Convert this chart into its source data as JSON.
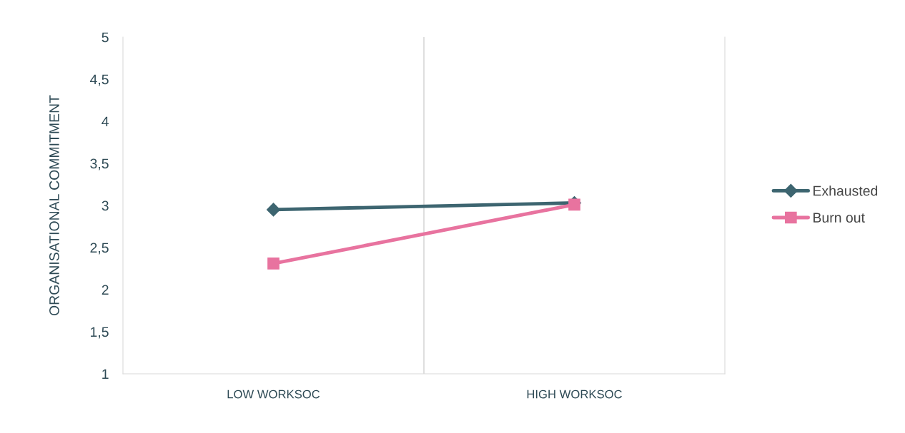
{
  "chart_data": {
    "type": "line",
    "ylabel": "ORGANISATIONAL COMMITMENT",
    "categories": [
      "LOW WORKSOC",
      "HIGH WORKSOC"
    ],
    "series": [
      {
        "name": "Exhausted",
        "color": "#3d6570",
        "marker": "diamond",
        "values": [
          2.95,
          3.03
        ]
      },
      {
        "name": "Burn out",
        "color": "#e8739f",
        "marker": "square",
        "values": [
          2.31,
          3.01
        ]
      }
    ],
    "ylim": [
      1,
      5
    ],
    "yticks": [
      1,
      {
        "value": 1.5,
        "label": "1,5"
      },
      2,
      {
        "value": 2.5,
        "label": "2,5"
      },
      3,
      {
        "value": 3.5,
        "label": "3,5"
      },
      4,
      {
        "value": 4.5,
        "label": "4,5"
      },
      5
    ],
    "grid": "x",
    "legend": "right",
    "line_style": "solid"
  }
}
